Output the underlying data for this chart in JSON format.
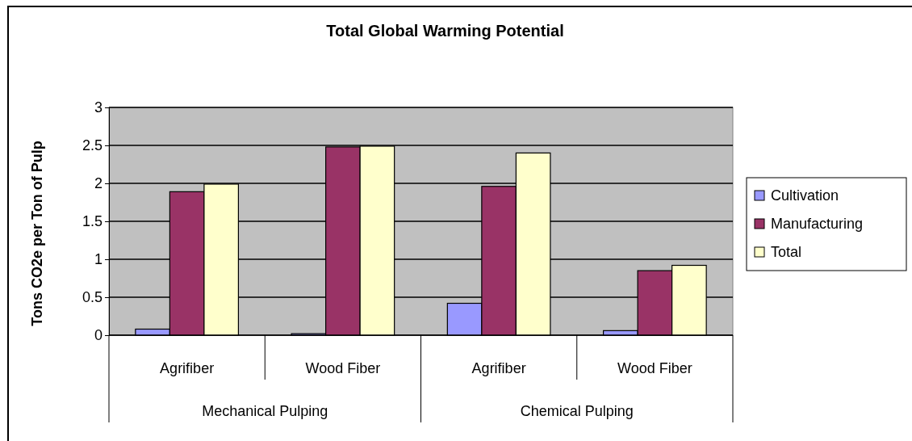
{
  "chart_data": {
    "type": "bar",
    "title": "Total Global Warming Potential",
    "ylabel": "Tons CO2e per Ton of Pulp",
    "categories": [
      "Agrifiber",
      "Wood Fiber",
      "Agrifiber",
      "Wood Fiber"
    ],
    "series": [
      {
        "name": "Cultivation",
        "color": "#9999ff",
        "values": [
          0.08,
          0.02,
          0.42,
          0.06
        ]
      },
      {
        "name": "Manufacturing",
        "color": "#993366",
        "values": [
          1.89,
          2.48,
          1.96,
          0.85
        ]
      },
      {
        "name": "Total",
        "color": "#ffffcc",
        "values": [
          1.99,
          2.49,
          2.4,
          0.92
        ]
      }
    ],
    "annotations": [
      "Mechanical Pulping",
      "Chemical Pulping"
    ],
    "ylim": [
      0,
      3
    ],
    "yticks": [
      0,
      0.5,
      1,
      1.5,
      2,
      2.5,
      3
    ],
    "grid": "y",
    "legend": "right"
  }
}
